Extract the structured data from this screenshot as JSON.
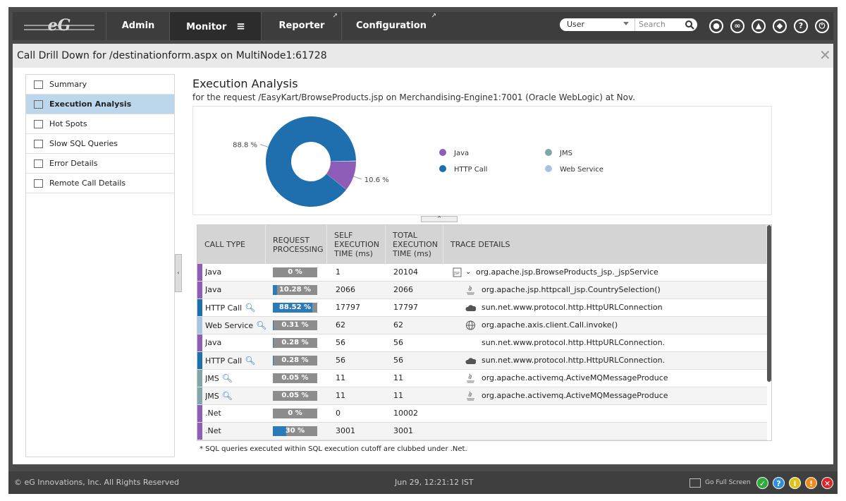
{
  "nav": {
    "logo": "eG",
    "items": [
      "Admin",
      "Monitor",
      "Reporter",
      "Configuration"
    ],
    "active": 1,
    "user": "User",
    "search": "Search"
  },
  "dialog": {
    "title": "Call Drill Down for /destinationform.aspx on MultiNode1:61728"
  },
  "sidebar": [
    {
      "label": "Summary"
    },
    {
      "label": "Execution Analysis",
      "selected": true
    },
    {
      "label": "Hot Spots"
    },
    {
      "label": "Slow SQL Queries"
    },
    {
      "label": "Error Details"
    },
    {
      "label": "Remote Call Details"
    }
  ],
  "content": {
    "heading": "Execution Analysis",
    "subtitle": "for the request /EasyKart/BrowseProducts.jsp on Merchandising-Engine1:7001 (Oracle WebLogic) at Nov."
  },
  "chart_data": {
    "type": "pie",
    "categories": [
      "Java",
      "JMS",
      "HTTP Call",
      "Web Service"
    ],
    "values": [
      10.6,
      0.1,
      88.8,
      0.3
    ],
    "value_labels": [
      "10.6 %",
      null,
      "88.8 %",
      null
    ],
    "colors": [
      "#8e5db8",
      "#7fa7a7",
      "#1f6ead",
      "#a8c3e4"
    ]
  },
  "table": {
    "columns": [
      "CALL TYPE",
      "REQUEST PROCESSING",
      "SELF EXECUTION TIME (ms)",
      "TOTAL EXECUTION TIME (ms)",
      "TRACE DETAILS"
    ],
    "rows": [
      {
        "type": "Java",
        "color": "#8e5db8",
        "processing": 0,
        "processing_label": "0 %",
        "self": "1",
        "total": "20104",
        "trace": "org.apache.jsp.BrowseProducts_jsp._jspService",
        "trace_icon": "jsp"
      },
      {
        "type": "Java",
        "color": "#8e5db8",
        "processing": 10.28,
        "processing_label": "10.28 %",
        "self": "2066",
        "total": "2066",
        "trace": "org.apache.jsp.httpcall_jsp.CountrySelection()",
        "trace_icon": "java"
      },
      {
        "type": "HTTP Call",
        "color": "#1f6ead",
        "drilldown": true,
        "processing": 88.52,
        "processing_label": "88.52 %",
        "self": "17797",
        "total": "17797",
        "trace": "sun.net.www.protocol.http.HttpURLConnection",
        "trace_icon": "cloud"
      },
      {
        "type": "Web Service",
        "color": "#a8c3e4",
        "drilldown": true,
        "processing": 0.31,
        "processing_label": "0.31 %",
        "self": "62",
        "total": "62",
        "trace": "org.apache.axis.client.Call.invoke()",
        "trace_icon": "globe"
      },
      {
        "type": "Java",
        "color": "#8e5db8",
        "processing": 0.28,
        "processing_label": "0.28 %",
        "self": "56",
        "total": "56",
        "trace": "sun.net.www.protocol.http.HttpURLConnection."
      },
      {
        "type": "HTTP Call",
        "color": "#1f6ead",
        "drilldown": true,
        "processing": 0.28,
        "processing_label": "0.28 %",
        "self": "56",
        "total": "56",
        "trace": "sun.net.www.protocol.http.HttpURLConnection.",
        "trace_icon": "cloud"
      },
      {
        "type": "JMS",
        "color": "#7fa7a7",
        "drilldown": true,
        "processing": 0.05,
        "processing_label": "0.05 %",
        "self": "11",
        "total": "11",
        "trace": "org.apache.activemq.ActiveMQMessageProduce",
        "trace_icon": "java"
      },
      {
        "type": "JMS",
        "color": "#7fa7a7",
        "drilldown": true,
        "processing": 0.05,
        "processing_label": "0.05 %",
        "self": "11",
        "total": "11",
        "trace": "org.apache.activemq.ActiveMQMessageProduce",
        "trace_icon": "java"
      },
      {
        "type": ".Net",
        "color": "#8e5db8",
        "processing": 0,
        "processing_label": "0 %",
        "self": "0",
        "total": "10002"
      },
      {
        "type": ".Net",
        "color": "#8e5db8",
        "processing": 30,
        "processing_label": "30 %",
        "self": "3001",
        "total": "3001"
      }
    ],
    "footnote": "* SQL queries executed within SQL execution cutoff are clubbed under .Net."
  },
  "footer": {
    "copyright": "© eG Innovations, Inc. All Rights Reserved",
    "timestamp": "Jun 29, 12:21:12 IST",
    "fullscreen": "Go Full Screen"
  }
}
